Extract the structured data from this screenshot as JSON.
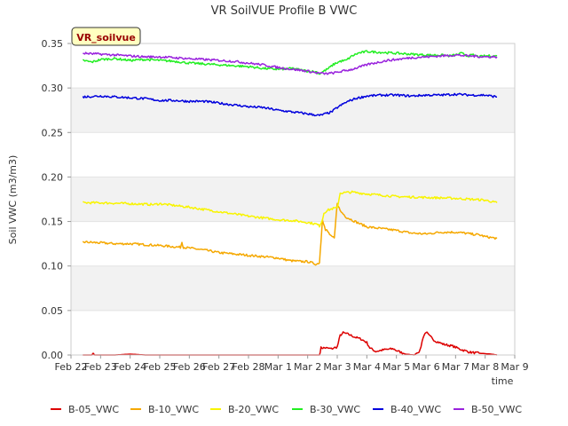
{
  "chart_data": {
    "type": "line",
    "title": "VR SoilVUE Profile B VWC",
    "xlabel": "time",
    "ylabel": "Soil VWC (m3/m3)",
    "annotation": "VR_soilvue",
    "ylim": [
      0.0,
      0.35
    ],
    "yticks": [
      "0.00",
      "0.05",
      "0.10",
      "0.15",
      "0.20",
      "0.25",
      "0.30",
      "0.35"
    ],
    "xlim": [
      0,
      15
    ],
    "xticks": [
      "Feb 22",
      "Feb 23",
      "Feb 24",
      "Feb 25",
      "Feb 26",
      "Feb 27",
      "Feb 28",
      "Mar 1",
      "Mar 2",
      "Mar 3",
      "Mar 4",
      "Mar 5",
      "Mar 6",
      "Mar 7",
      "Mar 8",
      "Mar 9"
    ],
    "grid": "horizontal bands",
    "legend_position": "bottom",
    "x_end_date": "Mar 8",
    "series": [
      {
        "name": "B-05_VWC",
        "color": "#dd0000",
        "x": [
          0.4,
          0.7,
          0.75,
          0.8,
          1.5,
          2.0,
          2.5,
          3.0,
          4.0,
          5.0,
          6.0,
          7.0,
          8.0,
          8.4,
          8.45,
          8.6,
          8.8,
          9.0,
          9.1,
          9.2,
          9.4,
          9.6,
          9.8,
          10.0,
          10.1,
          10.3,
          10.6,
          10.9,
          11.0,
          11.3,
          11.6,
          11.8,
          11.9,
          12.0,
          12.1,
          12.3,
          12.6,
          12.9,
          13.2,
          13.5,
          13.8,
          14.2,
          14.4
        ],
        "y": [
          0.0,
          0.0,
          0.002,
          0.0,
          0.0,
          0.001,
          0.0,
          0.0,
          0.0,
          0.0,
          0.0,
          0.0,
          0.0,
          0.0,
          0.008,
          0.008,
          0.007,
          0.009,
          0.022,
          0.025,
          0.023,
          0.02,
          0.018,
          0.014,
          0.008,
          0.004,
          0.006,
          0.007,
          0.005,
          0.001,
          0.0,
          0.005,
          0.02,
          0.026,
          0.022,
          0.016,
          0.012,
          0.01,
          0.006,
          0.003,
          0.002,
          0.001,
          0.0
        ]
      },
      {
        "name": "B-10_VWC",
        "color": "#f5a800",
        "x": [
          0.4,
          1.0,
          1.5,
          2.0,
          2.5,
          3.0,
          3.7,
          3.75,
          3.8,
          4.5,
          5.0,
          6.0,
          7.0,
          7.4,
          7.8,
          8.0,
          8.3,
          8.4,
          8.45,
          8.5,
          8.6,
          8.65,
          8.8,
          8.9,
          9.0,
          9.1,
          9.3,
          9.6,
          10.0,
          10.5,
          11.0,
          11.5,
          12.0,
          12.5,
          13.0,
          13.3,
          13.5,
          13.8,
          14.0,
          14.2,
          14.4
        ],
        "y": [
          0.127,
          0.126,
          0.125,
          0.125,
          0.124,
          0.123,
          0.121,
          0.127,
          0.121,
          0.118,
          0.115,
          0.112,
          0.109,
          0.106,
          0.105,
          0.105,
          0.102,
          0.104,
          0.128,
          0.153,
          0.14,
          0.14,
          0.133,
          0.131,
          0.171,
          0.162,
          0.155,
          0.15,
          0.144,
          0.142,
          0.14,
          0.137,
          0.136,
          0.138,
          0.138,
          0.137,
          0.136,
          0.135,
          0.133,
          0.132,
          0.131
        ]
      },
      {
        "name": "B-20_VWC",
        "color": "#f8f400",
        "x": [
          0.4,
          1.0,
          2.0,
          2.8,
          3.0,
          3.5,
          4.0,
          5.0,
          6.0,
          7.0,
          7.5,
          8.0,
          8.3,
          8.4,
          8.5,
          8.55,
          8.7,
          8.9,
          9.0,
          9.1,
          9.5,
          10.0,
          11.0,
          12.0,
          13.0,
          13.5,
          14.0,
          14.4
        ],
        "y": [
          0.171,
          0.171,
          0.17,
          0.169,
          0.17,
          0.168,
          0.166,
          0.161,
          0.156,
          0.152,
          0.151,
          0.149,
          0.147,
          0.145,
          0.152,
          0.16,
          0.163,
          0.165,
          0.165,
          0.182,
          0.183,
          0.181,
          0.178,
          0.177,
          0.176,
          0.175,
          0.174,
          0.171
        ]
      },
      {
        "name": "B-30_VWC",
        "color": "#22ee22",
        "x": [
          0.4,
          0.7,
          1.0,
          1.5,
          2.0,
          2.5,
          3.0,
          3.5,
          4.0,
          5.0,
          6.0,
          6.5,
          7.0,
          7.5,
          7.8,
          8.0,
          8.3,
          8.4,
          8.5,
          8.7,
          8.9,
          9.1,
          9.3,
          9.5,
          9.7,
          10.0,
          10.5,
          11.0,
          11.5,
          12.0,
          12.5,
          12.8,
          13.0,
          13.2,
          13.4,
          13.6,
          13.8,
          14.0,
          14.4
        ],
        "y": [
          0.331,
          0.329,
          0.332,
          0.333,
          0.331,
          0.332,
          0.331,
          0.33,
          0.328,
          0.326,
          0.324,
          0.322,
          0.321,
          0.322,
          0.32,
          0.319,
          0.318,
          0.316,
          0.318,
          0.322,
          0.327,
          0.33,
          0.331,
          0.336,
          0.339,
          0.341,
          0.34,
          0.339,
          0.338,
          0.337,
          0.337,
          0.336,
          0.337,
          0.339,
          0.336,
          0.337,
          0.335,
          0.336,
          0.336
        ]
      },
      {
        "name": "B-40_VWC",
        "color": "#0000dd",
        "x": [
          0.4,
          1.0,
          1.5,
          2.0,
          2.5,
          3.0,
          3.5,
          4.0,
          4.5,
          5.0,
          5.5,
          6.0,
          6.5,
          7.0,
          7.5,
          8.0,
          8.4,
          8.6,
          8.8,
          9.0,
          9.3,
          9.6,
          10.0,
          10.5,
          11.0,
          11.5,
          12.0,
          12.5,
          13.0,
          13.5,
          14.0,
          14.4
        ],
        "y": [
          0.29,
          0.291,
          0.29,
          0.289,
          0.288,
          0.286,
          0.286,
          0.285,
          0.285,
          0.283,
          0.281,
          0.279,
          0.278,
          0.275,
          0.273,
          0.271,
          0.269,
          0.271,
          0.273,
          0.278,
          0.284,
          0.288,
          0.291,
          0.292,
          0.292,
          0.291,
          0.292,
          0.292,
          0.293,
          0.292,
          0.292,
          0.29
        ]
      },
      {
        "name": "B-50_VWC",
        "color": "#9922dd",
        "x": [
          0.4,
          1.0,
          1.5,
          2.0,
          2.5,
          3.0,
          3.5,
          4.0,
          4.5,
          5.0,
          5.5,
          6.0,
          6.5,
          7.0,
          7.5,
          8.0,
          8.3,
          8.6,
          8.9,
          9.2,
          9.5,
          9.8,
          10.1,
          10.4,
          10.7,
          11.0,
          11.5,
          12.0,
          12.5,
          13.0,
          13.5,
          14.0,
          14.4
        ],
        "y": [
          0.339,
          0.338,
          0.337,
          0.336,
          0.335,
          0.335,
          0.334,
          0.333,
          0.332,
          0.331,
          0.33,
          0.328,
          0.326,
          0.323,
          0.321,
          0.319,
          0.317,
          0.316,
          0.317,
          0.319,
          0.321,
          0.324,
          0.327,
          0.329,
          0.331,
          0.332,
          0.334,
          0.335,
          0.336,
          0.337,
          0.336,
          0.335,
          0.335
        ]
      }
    ]
  }
}
